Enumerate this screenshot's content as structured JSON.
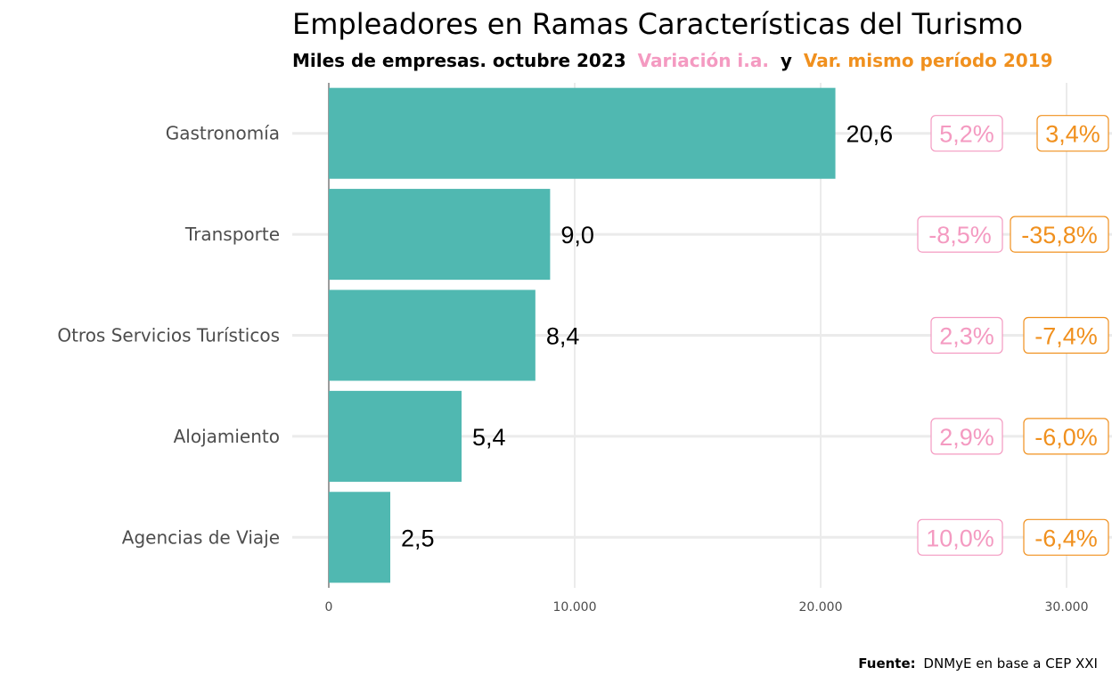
{
  "chart_data": {
    "type": "bar",
    "orientation": "horizontal",
    "title": "Empleadores en Ramas Características del Turismo",
    "subtitle": {
      "part1": "Miles de empresas. octubre 2023",
      "part2": "Variación i.a.",
      "part3": "y",
      "part4": "Var. mismo período 2019"
    },
    "categories": [
      "Gastronomía",
      "Transporte",
      "Otros Servicios Turísticos",
      "Alojamiento",
      "Agencias de Viaje"
    ],
    "values": [
      20600,
      9000,
      8400,
      5400,
      2500
    ],
    "value_labels": [
      "20,6",
      "9,0",
      "8,4",
      "5,4",
      "2,5"
    ],
    "var_ia": [
      "5,2%",
      "-8,5%",
      "2,3%",
      "2,9%",
      "10,0%"
    ],
    "var_2019": [
      "3,4%",
      "-35,8%",
      "-7,4%",
      "-6,0%",
      "-6,4%"
    ],
    "xlim": [
      0,
      30000
    ],
    "xticks": [
      0,
      10000,
      20000,
      30000
    ],
    "xtick_labels": [
      "0",
      "10.000",
      "20.000",
      "30.000"
    ],
    "xlabel": "",
    "ylabel": "",
    "grid": true,
    "colors": {
      "bar": "#50b8b1",
      "var_ia": "#f49ac1",
      "var_2019": "#f0901e",
      "grid": "#ebebeb",
      "axis": "#4d4d4d"
    },
    "source_label": "Fuente:",
    "source_text": "DNMyE en base a CEP XXI"
  }
}
